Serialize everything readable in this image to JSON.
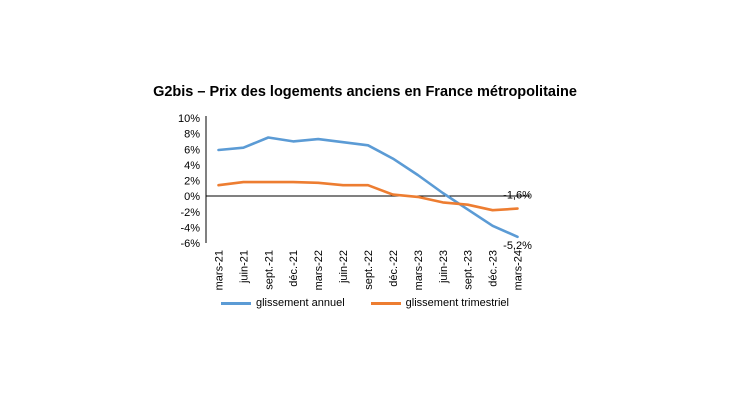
{
  "chart_data": {
    "type": "line",
    "title": "G2bis – Prix des logements anciens en France métropolitaine",
    "categories": [
      "mars-21",
      "juin-21",
      "sept.-21",
      "déc.-21",
      "mars-22",
      "juin-22",
      "sept.-22",
      "déc.-22",
      "mars-23",
      "juin-23",
      "sept.-23",
      "déc.-23",
      "mars-24"
    ],
    "series": [
      {
        "name": "glissement annuel",
        "color": "#5B9BD5",
        "values": [
          5.9,
          6.2,
          7.5,
          7.0,
          7.3,
          6.9,
          6.5,
          4.8,
          2.7,
          0.4,
          -1.7,
          -3.8,
          -5.2
        ]
      },
      {
        "name": "glissement trimestriel",
        "color": "#ED7D31",
        "values": [
          1.4,
          1.8,
          1.8,
          1.8,
          1.7,
          1.4,
          1.4,
          0.2,
          -0.1,
          -0.8,
          -1.1,
          -1.8,
          -1.6
        ]
      }
    ],
    "y_ticks": [
      "10%",
      "8%",
      "6%",
      "4%",
      "2%",
      "0%",
      "-2%",
      "-4%",
      "-6%"
    ],
    "ylim": [
      -6,
      10
    ],
    "annotations": [
      {
        "text": "-1,6%",
        "series": 1
      },
      {
        "text": "-5,2%",
        "series": 0
      }
    ],
    "legend_position": "bottom",
    "grid": false
  }
}
